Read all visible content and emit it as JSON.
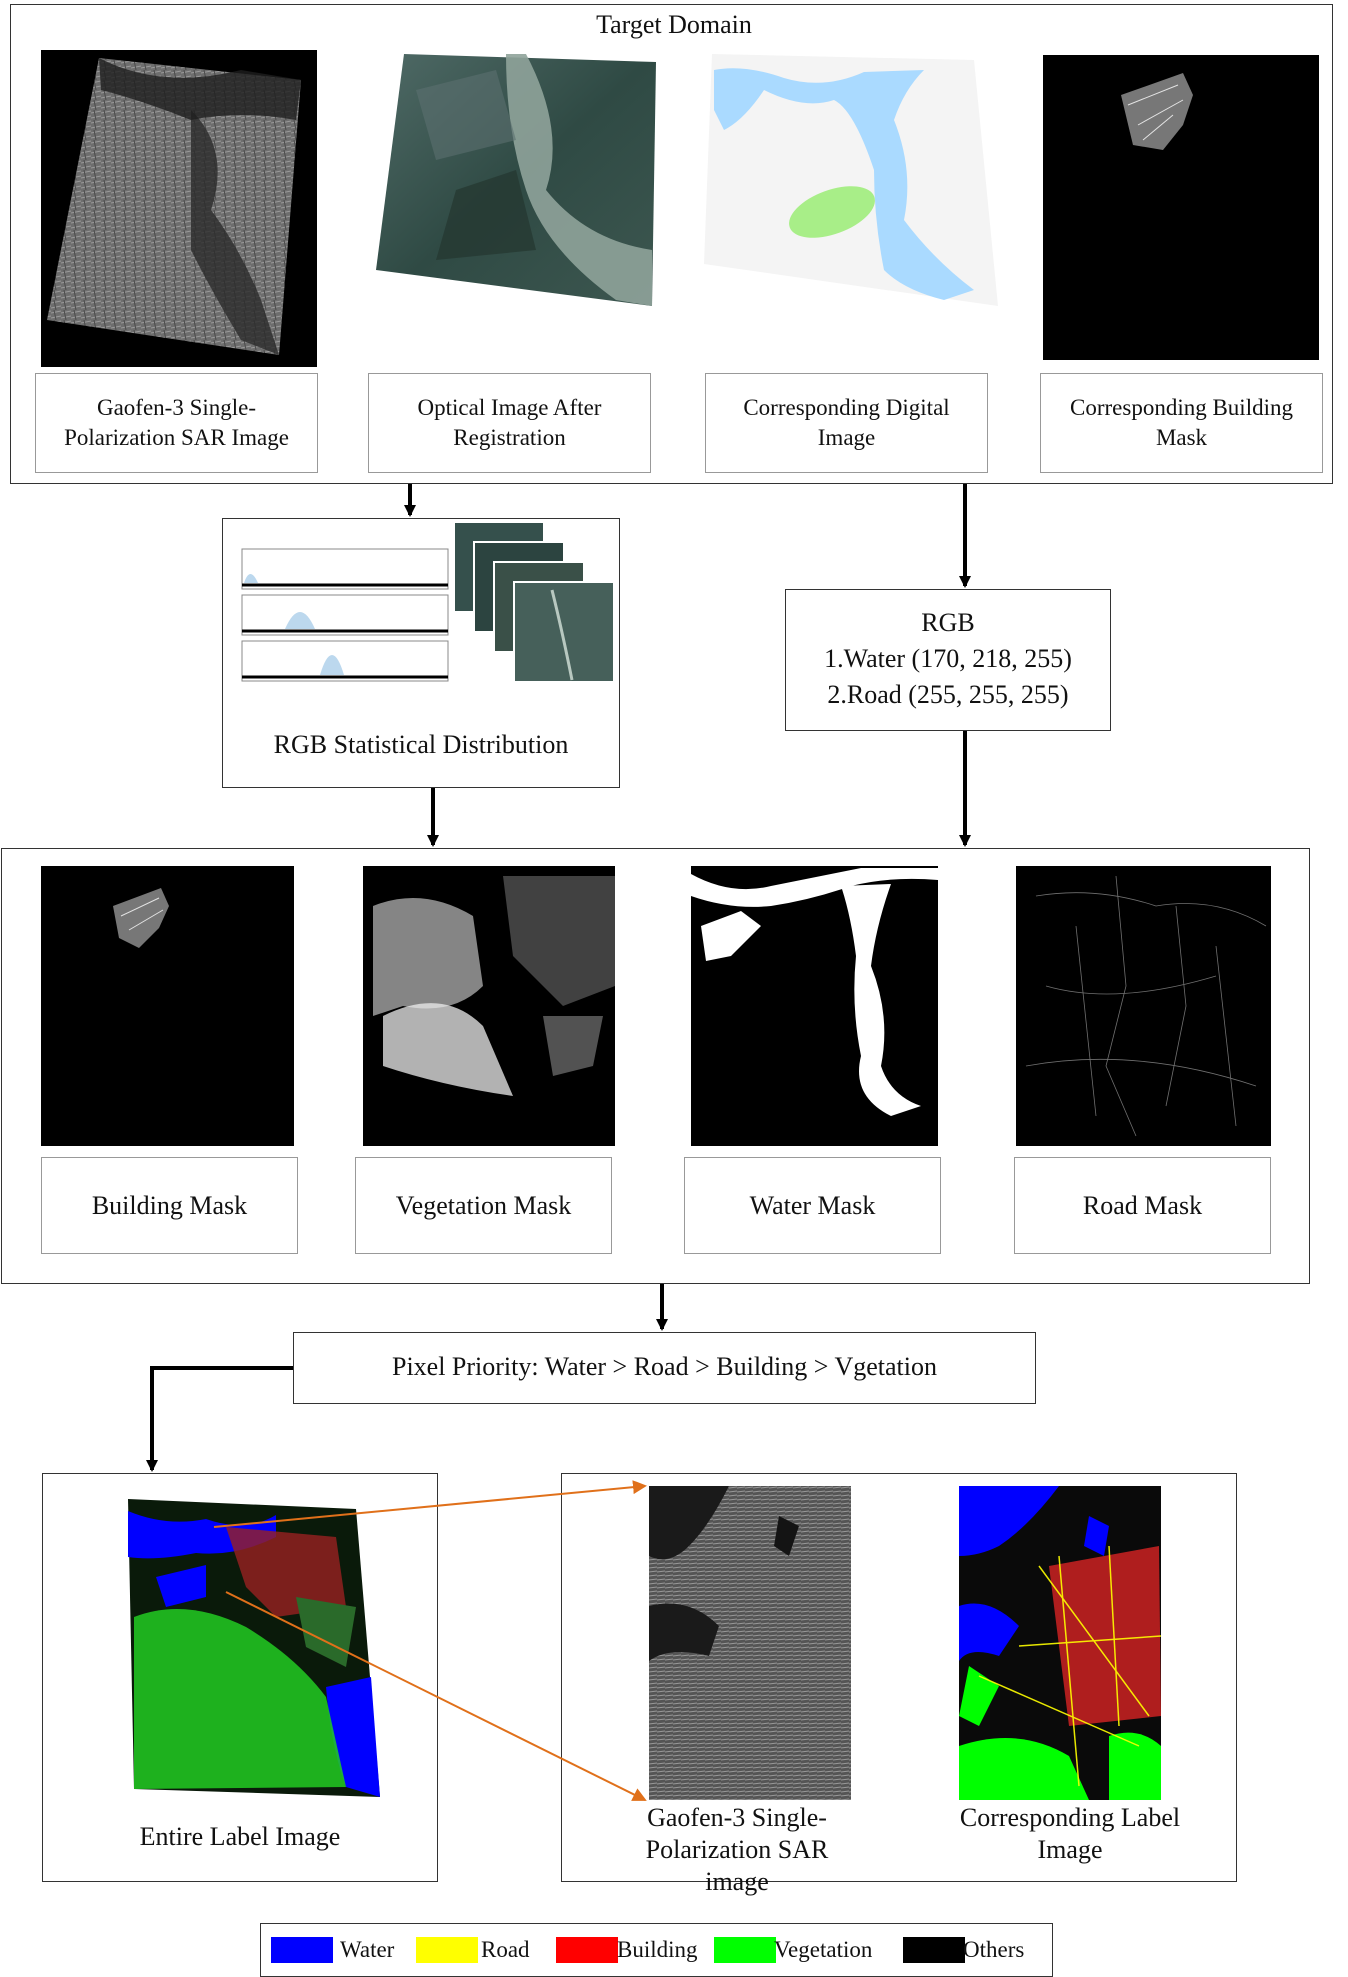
{
  "target_domain": {
    "title": "Target Domain",
    "panels": [
      {
        "label": "Gaofen-3 Single-Polarization SAR Image"
      },
      {
        "label": "Optical Image After Registration"
      },
      {
        "label": "Corresponding Digital Image"
      },
      {
        "label": "Corresponding Building Mask"
      }
    ]
  },
  "stat_box": {
    "label": "RGB  Statistical Distribution"
  },
  "rgb_box": {
    "title": "RGB",
    "line1": "1.Water (170, 218, 255)",
    "line2": "2.Road (255, 255, 255)"
  },
  "masks": [
    {
      "label": "Building Mask"
    },
    {
      "label": "Vegetation Mask"
    },
    {
      "label": "Water Mask"
    },
    {
      "label": "Road Mask"
    }
  ],
  "priority": {
    "label": "Pixel Priority: Water > Road > Building > Vgetation"
  },
  "entire_label": {
    "label": "Entire Label Image"
  },
  "detail": {
    "sar_label": "Gaofen-3 Single-Polarization SAR image",
    "label_label": "Corresponding Label Image"
  },
  "legend": [
    {
      "label": "Water",
      "color": "#0000ff"
    },
    {
      "label": "Road",
      "color": "#ffff00"
    },
    {
      "label": "Building",
      "color": "#ff0000"
    },
    {
      "label": "Vegetation",
      "color": "#00ff00"
    },
    {
      "label": "Others",
      "color": "#000000"
    }
  ],
  "colors": {
    "arrow": "#000000",
    "orange_arrow": "#e0701a",
    "water_digital": "#aadaff",
    "veg_digital": "#a8ee88"
  }
}
